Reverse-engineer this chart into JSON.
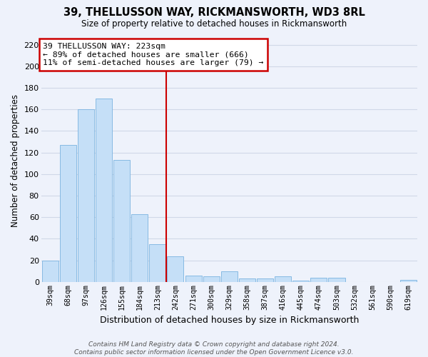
{
  "title": "39, THELLUSSON WAY, RICKMANSWORTH, WD3 8RL",
  "subtitle": "Size of property relative to detached houses in Rickmansworth",
  "xlabel": "Distribution of detached houses by size in Rickmansworth",
  "ylabel": "Number of detached properties",
  "bar_labels": [
    "39sqm",
    "68sqm",
    "97sqm",
    "126sqm",
    "155sqm",
    "184sqm",
    "213sqm",
    "242sqm",
    "271sqm",
    "300sqm",
    "329sqm",
    "358sqm",
    "387sqm",
    "416sqm",
    "445sqm",
    "474sqm",
    "503sqm",
    "532sqm",
    "561sqm",
    "590sqm",
    "619sqm"
  ],
  "bar_values": [
    20,
    127,
    160,
    170,
    113,
    63,
    35,
    24,
    6,
    5,
    10,
    3,
    3,
    5,
    1,
    4,
    4,
    0,
    0,
    0,
    2
  ],
  "bar_color": "#c5dff7",
  "bar_edge_color": "#7ab3e0",
  "grid_color": "#d0d8e8",
  "background_color": "#eef2fb",
  "vline_x": 6.5,
  "vline_color": "#cc0000",
  "annotation_text": "39 THELLUSSON WAY: 223sqm\n← 89% of detached houses are smaller (666)\n11% of semi-detached houses are larger (79) →",
  "annotation_box_color": "white",
  "annotation_box_edge": "#cc0000",
  "ylim": [
    0,
    225
  ],
  "yticks": [
    0,
    20,
    40,
    60,
    80,
    100,
    120,
    140,
    160,
    180,
    200,
    220
  ],
  "footer": "Contains HM Land Registry data © Crown copyright and database right 2024.\nContains public sector information licensed under the Open Government Licence v3.0."
}
